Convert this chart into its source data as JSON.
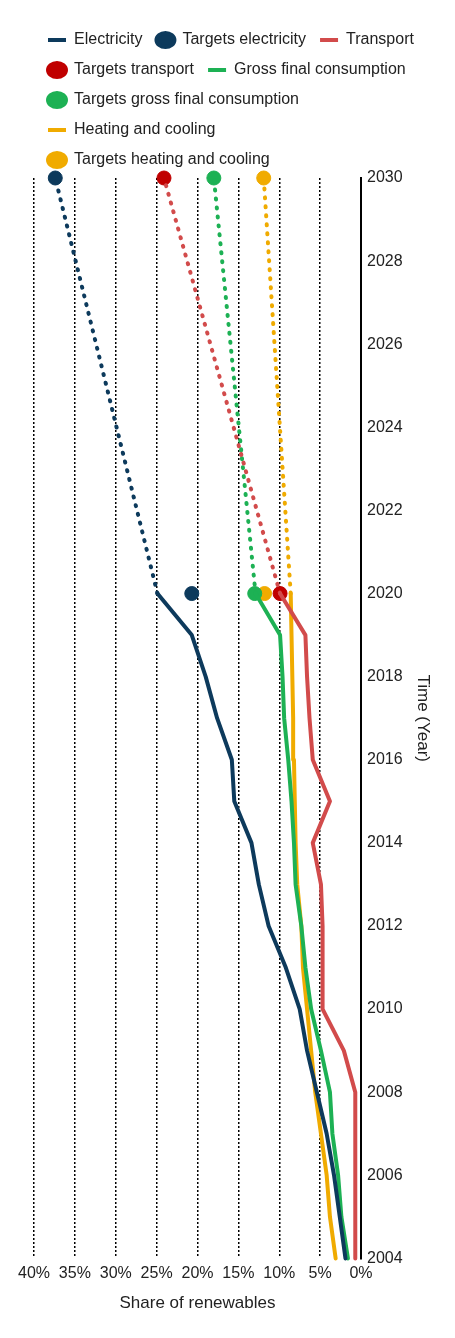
{
  "chart_data": {
    "type": "line",
    "orientation": "horizontal",
    "ylabel": "Time (Year)",
    "xlabel": "Share of renewables",
    "ylim": [
      2004,
      2030
    ],
    "yticks": [
      2004,
      2006,
      2008,
      2010,
      2012,
      2014,
      2016,
      2018,
      2020,
      2022,
      2024,
      2026,
      2028,
      2030
    ],
    "xlim": [
      40,
      0
    ],
    "xticks": [
      {
        "value": 0,
        "label": "0%"
      },
      {
        "value": 5,
        "label": "5%"
      },
      {
        "value": 10,
        "label": "10%"
      },
      {
        "value": 15,
        "label": "15%"
      },
      {
        "value": 20,
        "label": "20%"
      },
      {
        "value": 25,
        "label": "25%"
      },
      {
        "value": 30,
        "label": "30%"
      },
      {
        "value": 35,
        "label": "35%"
      },
      {
        "value": 40,
        "label": "40%"
      }
    ],
    "grid": "x",
    "legend": "top",
    "series": [
      {
        "name": "Electricity",
        "line_style": "solid",
        "marker": "none",
        "color": "#0d3a5c",
        "x": [
          2004,
          2005,
          2006,
          2007,
          2008,
          2009,
          2010,
          2011,
          2012,
          2013,
          2014,
          2015,
          2016,
          2017,
          2018,
          2019,
          2020
        ],
        "values": [
          1.9,
          2.6,
          3.3,
          4.2,
          5.4,
          6.6,
          7.5,
          9.2,
          11.3,
          12.5,
          13.4,
          15.5,
          15.8,
          17.6,
          19.0,
          20.7,
          24.9
        ]
      },
      {
        "line_style": "dotted",
        "marker": "none",
        "color": "#0d3a5c",
        "x": [
          2020,
          2030
        ],
        "values": [
          24.9,
          37.4
        ]
      },
      {
        "name": "Targets electricity",
        "type": "scatter",
        "marker": "circle",
        "color": "#0d3a5c",
        "x": [
          2020,
          2030
        ],
        "values": [
          20.7,
          37.4
        ]
      },
      {
        "name": "Transport",
        "line_style": "solid",
        "marker": "none",
        "color": "#d24b4b",
        "x": [
          2004,
          2005,
          2006,
          2007,
          2008,
          2009,
          2010,
          2011,
          2012,
          2013,
          2014,
          2015,
          2016,
          2017,
          2018,
          2019,
          2020
        ],
        "values": [
          0.7,
          0.7,
          0.7,
          0.7,
          0.7,
          2.1,
          4.7,
          4.7,
          4.7,
          4.9,
          5.9,
          3.8,
          5.9,
          6.3,
          6.6,
          6.8,
          9.9
        ]
      },
      {
        "line_style": "dotted",
        "marker": "none",
        "color": "#d24b4b",
        "x": [
          2020,
          2030
        ],
        "values": [
          9.9,
          24.1
        ]
      },
      {
        "name": "Targets transport",
        "type": "scatter",
        "marker": "circle",
        "color": "#c00000",
        "x": [
          2020,
          2030
        ],
        "values": [
          9.9,
          24.1
        ]
      },
      {
        "name": "Gross final consumption",
        "line_style": "solid",
        "marker": "none",
        "color": "#1db154",
        "x": [
          2004,
          2005,
          2006,
          2007,
          2008,
          2009,
          2010,
          2011,
          2012,
          2013,
          2014,
          2015,
          2016,
          2017,
          2018,
          2019,
          2020
        ],
        "values": [
          1.6,
          2.4,
          2.8,
          3.5,
          3.8,
          4.9,
          6.1,
          6.8,
          7.3,
          8.0,
          8.2,
          8.5,
          8.9,
          9.4,
          9.6,
          9.9,
          12.9
        ]
      },
      {
        "line_style": "dotted",
        "marker": "none",
        "color": "#1db154",
        "x": [
          2020,
          2030
        ],
        "values": [
          12.9,
          18.0
        ]
      },
      {
        "name": "Targets gross final consumption",
        "type": "scatter",
        "marker": "circle",
        "color": "#1db154",
        "x": [
          2020,
          2030
        ],
        "values": [
          13.0,
          18.0
        ]
      },
      {
        "name": "Heating and cooling",
        "line_style": "solid",
        "marker": "none",
        "color": "#f0ab00",
        "x": [
          2004,
          2005,
          2006,
          2007,
          2008,
          2009,
          2010,
          2011,
          2012,
          2013,
          2014,
          2015,
          2016,
          2017,
          2018,
          2019,
          2020
        ],
        "values": [
          3.1,
          3.8,
          4.2,
          4.9,
          5.6,
          6.1,
          6.6,
          7.1,
          7.3,
          7.8,
          8.0,
          8.1,
          8.2,
          8.3,
          8.4,
          8.5,
          8.6
        ]
      },
      {
        "line_style": "dotted",
        "marker": "none",
        "color": "#f0ab00",
        "x": [
          2020,
          2030
        ],
        "values": [
          8.6,
          11.9
        ]
      },
      {
        "name": "Targets heating and cooling",
        "type": "scatter",
        "marker": "circle",
        "color": "#f0ab00",
        "x": [
          2020,
          2030
        ],
        "values": [
          11.8,
          11.9
        ]
      }
    ]
  }
}
